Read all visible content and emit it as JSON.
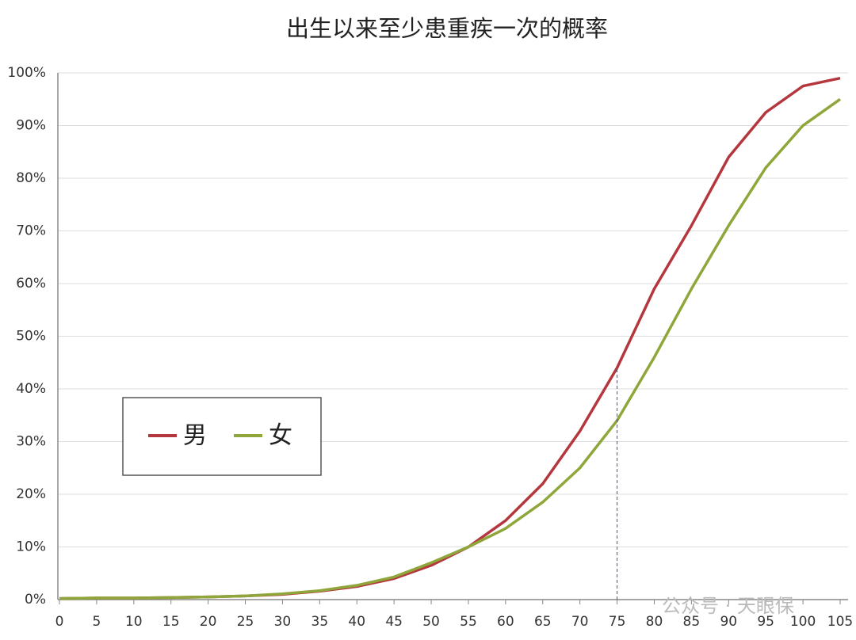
{
  "chart_data": {
    "type": "line",
    "title": "出生以来至少患重疾一次的概率",
    "x": [
      0,
      5,
      10,
      15,
      20,
      25,
      30,
      35,
      40,
      45,
      50,
      55,
      60,
      65,
      70,
      75,
      80,
      85,
      90,
      95,
      100,
      105
    ],
    "series": [
      {
        "name": "男",
        "color": "#b5373e",
        "values": [
          0.2,
          0.3,
          0.3,
          0.4,
          0.5,
          0.7,
          1.0,
          1.6,
          2.5,
          4.0,
          6.5,
          10,
          15,
          22,
          32,
          44,
          59,
          71,
          84,
          92.5,
          97.5,
          99
        ]
      },
      {
        "name": "女",
        "color": "#8ea63a",
        "values": [
          0.2,
          0.3,
          0.3,
          0.4,
          0.5,
          0.7,
          1.1,
          1.7,
          2.7,
          4.3,
          7,
          10,
          13.5,
          18.5,
          25,
          34,
          46,
          59,
          71,
          82,
          90,
          95
        ]
      }
    ],
    "xlim": [
      0,
      105
    ],
    "xticks": [
      0,
      5,
      10,
      15,
      20,
      25,
      30,
      35,
      40,
      45,
      50,
      55,
      60,
      65,
      70,
      75,
      80,
      85,
      90,
      95,
      100,
      105
    ],
    "ylim": [
      0,
      100
    ],
    "yticks": [
      {
        "value": 0,
        "label": "0%"
      },
      {
        "value": 10,
        "label": "10%"
      },
      {
        "value": 20,
        "label": "20%"
      },
      {
        "value": 30,
        "label": "30%"
      },
      {
        "value": 40,
        "label": "40%"
      },
      {
        "value": 50,
        "label": "50%"
      },
      {
        "value": 60,
        "label": "60%"
      },
      {
        "value": 70,
        "label": "70%"
      },
      {
        "value": 80,
        "label": "80%"
      },
      {
        "value": 90,
        "label": "90%"
      },
      {
        "value": 100,
        "label": "100%"
      }
    ],
    "grid": true,
    "legend": "left",
    "vline": 75,
    "watermark": "公众号 · 天眼保"
  }
}
